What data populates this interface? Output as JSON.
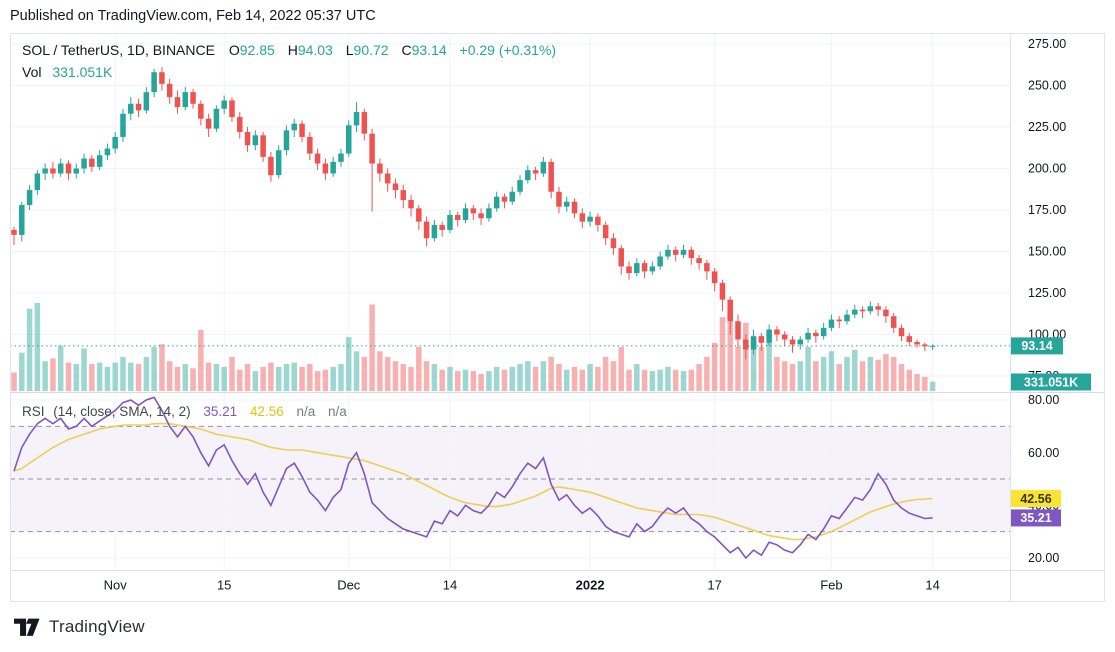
{
  "header": {
    "published_line": "Published on TradingView.com, Feb 14, 2022 05:37 UTC"
  },
  "legend": {
    "symbol": "SOL / TetherUS, 1D, BINANCE",
    "ohlc": [
      {
        "label": "O",
        "value": "92.85"
      },
      {
        "label": "H",
        "value": "94.03"
      },
      {
        "label": "L",
        "value": "90.72"
      },
      {
        "label": "C",
        "value": "93.14"
      }
    ],
    "change": "+0.29 (+0.31%)",
    "vol_label": "Vol",
    "vol_value": "331.051K"
  },
  "rsi_legend": {
    "title": "RSI",
    "params": "(14, close, SMA, 14, 2)",
    "rsi_value": "35.21",
    "sma_value": "42.56",
    "na1": "n/a",
    "na2": "n/a"
  },
  "badges": {
    "price": "93.14",
    "volume": "331.051K",
    "rsi": "35.21",
    "rsi_sma": "42.56"
  },
  "footer": {
    "logo_text": "TradingView"
  },
  "colors": {
    "up": "#26a69a",
    "down": "#ef5350",
    "vol_up": "rgba(38,166,154,0.45)",
    "vol_down": "rgba(239,83,80,0.45)",
    "rsi_line": "#7e57c2",
    "rsi_sma_line": "#f0ce54",
    "rsi_band_fill": "rgba(126,87,194,0.08)",
    "rsi_level_dash": "#9094a0",
    "grid": "#f0f3fa",
    "frame": "#e0e3eb",
    "separator": "#d8dbe3",
    "text_dark": "#131722",
    "badge_price_bg": "#26a69a",
    "badge_rsi_bg": "#7e57c2",
    "badge_sma_bg": "#f7e433",
    "badge_sma_text": "#3c3403",
    "last_price_dotted": "#26a69a"
  },
  "chart_data": {
    "type": "candlestick",
    "title": "SOL / TetherUS, 1D, BINANCE",
    "exchange": "BINANCE",
    "interval": "1D",
    "last_price": 93.14,
    "last_volume_label": "331.051K",
    "price_axis": {
      "ticks": [
        275,
        250,
        225,
        200,
        175,
        150,
        125,
        100,
        75
      ]
    },
    "rsi_axis": {
      "ticks": [
        80,
        60,
        40,
        20
      ]
    },
    "rsi_bands": {
      "upper": 70,
      "middle": 50,
      "lower": 30
    },
    "rsi_current": 35.21,
    "rsi_sma_current": 42.56,
    "time_axis": [
      {
        "label": "Nov",
        "day": 13,
        "bold": false
      },
      {
        "label": "15",
        "day": 27,
        "bold": false
      },
      {
        "label": "Dec",
        "day": 43,
        "bold": false
      },
      {
        "label": "14",
        "day": 56,
        "bold": false
      },
      {
        "label": "2022",
        "day": 74,
        "bold": true
      },
      {
        "label": "17",
        "day": 90,
        "bold": false
      },
      {
        "label": "Feb",
        "day": 105,
        "bold": false
      },
      {
        "label": "14",
        "day": 118,
        "bold": false
      }
    ],
    "volume_unit": "K",
    "candles": [
      [
        163,
        165,
        154,
        160,
        650
      ],
      [
        160,
        180,
        156,
        178,
        1350
      ],
      [
        178,
        190,
        175,
        187,
        2900
      ],
      [
        187,
        199,
        184,
        197,
        3100
      ],
      [
        197,
        203,
        193,
        200,
        1050
      ],
      [
        200,
        204,
        194,
        197,
        1150
      ],
      [
        197,
        206,
        195,
        203,
        1600
      ],
      [
        203,
        205,
        193,
        197,
        1000
      ],
      [
        197,
        203,
        194,
        200,
        950
      ],
      [
        200,
        209,
        197,
        206,
        1500
      ],
      [
        206,
        208,
        198,
        201,
        950
      ],
      [
        201,
        211,
        199,
        208,
        1000
      ],
      [
        208,
        215,
        205,
        212,
        850
      ],
      [
        212,
        222,
        209,
        219,
        1000
      ],
      [
        219,
        236,
        216,
        233,
        1200
      ],
      [
        233,
        243,
        229,
        239,
        1000
      ],
      [
        239,
        242,
        231,
        235,
        950
      ],
      [
        235,
        249,
        233,
        246,
        1200
      ],
      [
        246,
        260,
        243,
        258,
        1550
      ],
      [
        258,
        261,
        247,
        251,
        1650
      ],
      [
        251,
        254,
        239,
        243,
        1050
      ],
      [
        243,
        247,
        233,
        237,
        850
      ],
      [
        237,
        249,
        235,
        246,
        950
      ],
      [
        246,
        248,
        236,
        239,
        800
      ],
      [
        239,
        241,
        226,
        230,
        2150
      ],
      [
        230,
        233,
        219,
        224,
        1000
      ],
      [
        224,
        238,
        222,
        236,
        950
      ],
      [
        236,
        244,
        233,
        241,
        850
      ],
      [
        241,
        243,
        228,
        231,
        1200
      ],
      [
        231,
        234,
        218,
        222,
        750
      ],
      [
        222,
        225,
        210,
        214,
        950
      ],
      [
        214,
        223,
        211,
        220,
        700
      ],
      [
        220,
        222,
        204,
        207,
        850
      ],
      [
        207,
        210,
        192,
        196,
        1000
      ],
      [
        196,
        214,
        194,
        211,
        850
      ],
      [
        211,
        226,
        208,
        223,
        950
      ],
      [
        223,
        230,
        219,
        227,
        1000
      ],
      [
        227,
        229,
        216,
        219,
        850
      ],
      [
        219,
        222,
        205,
        209,
        950
      ],
      [
        209,
        212,
        199,
        203,
        700
      ],
      [
        203,
        206,
        193,
        197,
        750
      ],
      [
        197,
        207,
        195,
        204,
        850
      ],
      [
        204,
        212,
        201,
        209,
        950
      ],
      [
        209,
        229,
        207,
        226,
        1900
      ],
      [
        226,
        240,
        222,
        234,
        1400
      ],
      [
        234,
        236,
        217,
        221,
        1200
      ],
      [
        221,
        224,
        174,
        203,
        3050
      ],
      [
        203,
        206,
        192,
        197,
        1400
      ],
      [
        197,
        200,
        186,
        191,
        1200
      ],
      [
        191,
        194,
        182,
        187,
        1050
      ],
      [
        187,
        190,
        176,
        181,
        950
      ],
      [
        181,
        184,
        171,
        176,
        850
      ],
      [
        176,
        178,
        163,
        168,
        1550
      ],
      [
        168,
        171,
        153,
        158,
        1050
      ],
      [
        158,
        169,
        156,
        166,
        950
      ],
      [
        166,
        168,
        159,
        163,
        750
      ],
      [
        163,
        175,
        161,
        172,
        850
      ],
      [
        172,
        174,
        165,
        169,
        700
      ],
      [
        169,
        179,
        167,
        176,
        750
      ],
      [
        176,
        178,
        169,
        173,
        700
      ],
      [
        173,
        176,
        166,
        170,
        600
      ],
      [
        170,
        179,
        168,
        176,
        700
      ],
      [
        176,
        186,
        174,
        183,
        850
      ],
      [
        183,
        185,
        176,
        180,
        750
      ],
      [
        180,
        189,
        178,
        186,
        850
      ],
      [
        186,
        196,
        184,
        193,
        950
      ],
      [
        193,
        202,
        191,
        199,
        1050
      ],
      [
        199,
        201,
        193,
        197,
        850
      ],
      [
        197,
        207,
        195,
        204,
        1050
      ],
      [
        204,
        206,
        182,
        186,
        1200
      ],
      [
        186,
        189,
        173,
        177,
        950
      ],
      [
        177,
        183,
        174,
        180,
        750
      ],
      [
        180,
        182,
        170,
        173,
        850
      ],
      [
        173,
        176,
        164,
        168,
        750
      ],
      [
        168,
        174,
        165,
        171,
        950
      ],
      [
        171,
        173,
        162,
        166,
        850
      ],
      [
        166,
        168,
        154,
        158,
        1200
      ],
      [
        158,
        161,
        148,
        152,
        1050
      ],
      [
        152,
        154,
        136,
        141,
        1550
      ],
      [
        141,
        144,
        133,
        137,
        750
      ],
      [
        137,
        146,
        135,
        143,
        950
      ],
      [
        143,
        145,
        134,
        138,
        750
      ],
      [
        138,
        144,
        136,
        141,
        700
      ],
      [
        141,
        150,
        139,
        147,
        750
      ],
      [
        147,
        154,
        145,
        151,
        850
      ],
      [
        151,
        153,
        144,
        148,
        750
      ],
      [
        148,
        154,
        146,
        151,
        700
      ],
      [
        151,
        153,
        142,
        146,
        750
      ],
      [
        146,
        148,
        139,
        143,
        950
      ],
      [
        143,
        145,
        133,
        138,
        1200
      ],
      [
        138,
        140,
        126,
        131,
        1700
      ],
      [
        131,
        133,
        114,
        121,
        2600
      ],
      [
        121,
        123,
        100,
        108,
        2700
      ],
      [
        108,
        112,
        92,
        97,
        1550
      ],
      [
        97,
        100,
        85,
        91,
        2400
      ],
      [
        91,
        103,
        88,
        99,
        1900
      ],
      [
        99,
        101,
        90,
        95,
        1550
      ],
      [
        95,
        106,
        93,
        103,
        1700
      ],
      [
        103,
        105,
        96,
        100,
        1200
      ],
      [
        100,
        102,
        93,
        97,
        1050
      ],
      [
        97,
        99,
        89,
        94,
        950
      ],
      [
        94,
        99,
        91,
        97,
        1050
      ],
      [
        97,
        104,
        95,
        101,
        1550
      ],
      [
        101,
        103,
        95,
        99,
        1050
      ],
      [
        99,
        107,
        97,
        104,
        1200
      ],
      [
        104,
        112,
        102,
        109,
        1400
      ],
      [
        109,
        111,
        104,
        108,
        950
      ],
      [
        108,
        115,
        106,
        112,
        1200
      ],
      [
        112,
        118,
        110,
        115,
        1450
      ],
      [
        115,
        117,
        110,
        114,
        1050
      ],
      [
        114,
        120,
        112,
        117,
        1200
      ],
      [
        117,
        119,
        111,
        115,
        1100
      ],
      [
        115,
        117,
        107,
        111,
        1300
      ],
      [
        111,
        113,
        101,
        104,
        1200
      ],
      [
        104,
        106,
        96,
        99,
        950
      ],
      [
        99,
        101,
        93,
        95.5,
        750
      ],
      [
        95.5,
        97,
        92,
        94,
        600
      ],
      [
        94,
        95,
        90,
        92.85,
        500
      ],
      [
        92.85,
        94.03,
        90.72,
        93.14,
        331.051
      ]
    ],
    "rsi": [
      53,
      62,
      67,
      71,
      73,
      71,
      73,
      69,
      70,
      73,
      70,
      72,
      74,
      76,
      79,
      80,
      78,
      80,
      81,
      76,
      70,
      66,
      70,
      66,
      60,
      55,
      61,
      63,
      57,
      52,
      48,
      52,
      45,
      40,
      47,
      54,
      56,
      51,
      45,
      42,
      38,
      43,
      46,
      56,
      60,
      52,
      41,
      38,
      35,
      33,
      31,
      30,
      29,
      28,
      34,
      33,
      38,
      36,
      40,
      38,
      37,
      40,
      45,
      43,
      47,
      52,
      56,
      54,
      58,
      48,
      42,
      44,
      40,
      37,
      39,
      36,
      32,
      30,
      29,
      28,
      33,
      30,
      32,
      36,
      39,
      37,
      39,
      35,
      33,
      30,
      28,
      25,
      22,
      24,
      20,
      23,
      21,
      26,
      25,
      23,
      22,
      25,
      29,
      27,
      31,
      36,
      35,
      39,
      43,
      42,
      46,
      52,
      48,
      42,
      39,
      37,
      36,
      35,
      35.21
    ],
    "rsi_sma": [
      53,
      54,
      56,
      58,
      60,
      62,
      63.5,
      65,
      66,
      67,
      68,
      69,
      69.5,
      70,
      70.5,
      70.5,
      70.5,
      70.5,
      71,
      71,
      71,
      70.5,
      70,
      69.5,
      69,
      68,
      67,
      66.5,
      66,
      65.5,
      65,
      64,
      63,
      62,
      61.5,
      61,
      61,
      61,
      60.5,
      60,
      59.5,
      59,
      58.5,
      58,
      57.5,
      57,
      56,
      55,
      54,
      53,
      52,
      50.5,
      49,
      47.5,
      46,
      44.5,
      43,
      42,
      41,
      40.5,
      40,
      39.5,
      39.5,
      40,
      40.5,
      41.5,
      42.5,
      43.5,
      45,
      46.5,
      47,
      46.5,
      46,
      45.5,
      45,
      44,
      43,
      42,
      41,
      40,
      39,
      38.5,
      38,
      37.5,
      37,
      36.5,
      36.5,
      36.5,
      36.5,
      36,
      35.5,
      34.5,
      33.5,
      32.5,
      31.5,
      30.5,
      29.5,
      28.5,
      28,
      27.5,
      27,
      27,
      27.5,
      28,
      29,
      30,
      31.5,
      33,
      34.5,
      36,
      37.5,
      38.5,
      39.5,
      40.5,
      41.2,
      41.8,
      42.2,
      42.4,
      42.56
    ]
  }
}
